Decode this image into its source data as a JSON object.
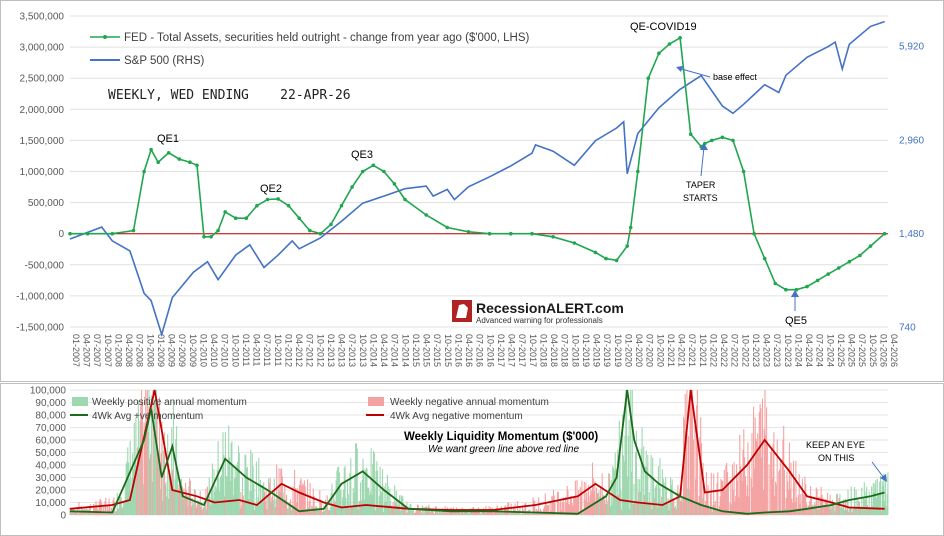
{
  "chart_data": [
    {
      "type": "line",
      "legend_placement": "top-left",
      "grid": true,
      "ylim_left": [
        -1500000,
        3500000
      ],
      "yticks_left": [
        "3,500,000",
        "3,000,000",
        "2,500,000",
        "2,000,000",
        "1,500,000",
        "1,000,000",
        "500,000",
        "0",
        "-500,000",
        "-1,000,000",
        "-1,500,000"
      ],
      "yticks_right": [
        "5,920",
        "2,960",
        "1,480",
        "740"
      ],
      "right_axis_scale": "log",
      "ylim_right": [
        740,
        7400
      ],
      "x_range": [
        "01-2007",
        "04-2026"
      ],
      "x_tick_labels": [
        "01-2007",
        "04-2007",
        "07-2007",
        "10-2007",
        "01-2008",
        "04-2008",
        "07-2008",
        "10-2008",
        "01-2009",
        "04-2009",
        "07-2009",
        "10-2009",
        "01-2010",
        "04-2010",
        "07-2010",
        "10-2010",
        "01-2011",
        "04-2011",
        "07-2011",
        "10-2011",
        "01-2012",
        "04-2012",
        "07-2012",
        "10-2012",
        "01-2013",
        "04-2013",
        "07-2013",
        "10-2013",
        "01-2014",
        "04-2014",
        "07-2014",
        "10-2014",
        "01-2015",
        "04-2015",
        "07-2015",
        "10-2015",
        "01-2016",
        "04-2016",
        "07-2016",
        "10-2016",
        "01-2017",
        "04-2017",
        "07-2017",
        "10-2017",
        "01-2018",
        "04-2018",
        "07-2018",
        "10-2018",
        "01-2019",
        "04-2019",
        "07-2019",
        "10-2019",
        "01-2020",
        "04-2020",
        "07-2020",
        "10-2020",
        "01-2021",
        "04-2021",
        "07-2021",
        "10-2021",
        "01-2022",
        "04-2022",
        "07-2022",
        "10-2022",
        "01-2023",
        "04-2023",
        "07-2023",
        "10-2023",
        "01-2024",
        "04-2024",
        "07-2024",
        "10-2024",
        "01-2025",
        "04-2025",
        "07-2025",
        "10-2025",
        "01-2026",
        "04-2026"
      ],
      "series": [
        {
          "name": "FED - Total Assets, securities held outright - change from year ago ($'000, LHS)",
          "color": "#21a650",
          "axis": "left",
          "x": [
            "2007-01",
            "2007-06",
            "2008-01",
            "2008-07",
            "2008-10",
            "2008-12",
            "2009-02",
            "2009-05",
            "2009-08",
            "2009-11",
            "2010-01",
            "2010-03",
            "2010-05",
            "2010-07",
            "2010-09",
            "2010-12",
            "2011-03",
            "2011-06",
            "2011-09",
            "2011-12",
            "2012-03",
            "2012-06",
            "2012-09",
            "2012-12",
            "2013-03",
            "2013-06",
            "2013-09",
            "2013-12",
            "2014-03",
            "2014-06",
            "2014-09",
            "2014-12",
            "2015-06",
            "2015-12",
            "2016-06",
            "2016-12",
            "2017-06",
            "2017-12",
            "2018-06",
            "2018-12",
            "2019-06",
            "2019-09",
            "2019-12",
            "2020-03",
            "2020-04",
            "2020-06",
            "2020-09",
            "2020-12",
            "2021-03",
            "2021-06",
            "2021-09",
            "2021-12",
            "2022-01",
            "2022-03",
            "2022-06",
            "2022-09",
            "2022-12",
            "2023-03",
            "2023-06",
            "2023-09",
            "2023-12",
            "2024-03",
            "2024-06",
            "2024-09",
            "2024-12",
            "2025-03",
            "2025-06",
            "2025-09",
            "2025-12",
            "2026-04"
          ],
          "values": [
            0,
            0,
            0,
            50000,
            1000000,
            1350000,
            1150000,
            1300000,
            1200000,
            1150000,
            1100000,
            -50000,
            -50000,
            50000,
            350000,
            250000,
            250000,
            450000,
            550000,
            560000,
            450000,
            250000,
            50000,
            0,
            150000,
            450000,
            750000,
            1000000,
            1100000,
            1000000,
            800000,
            550000,
            300000,
            100000,
            30000,
            0,
            0,
            0,
            -50000,
            -150000,
            -300000,
            -400000,
            -430000,
            -200000,
            100000,
            1000000,
            2500000,
            2900000,
            3050000,
            3150000,
            1600000,
            1400000,
            1450000,
            1500000,
            1550000,
            1500000,
            1000000,
            0,
            -400000,
            -800000,
            -900000,
            -900000,
            -850000,
            -750000,
            -650000,
            -550000,
            -450000,
            -350000,
            -200000,
            0
          ]
        },
        {
          "name": "S&P 500 (RHS)",
          "color": "#4472c4",
          "axis": "right",
          "x": [
            "2007-01",
            "2007-10",
            "2008-01",
            "2008-06",
            "2008-10",
            "2008-12",
            "2009-03",
            "2009-06",
            "2009-12",
            "2010-04",
            "2010-07",
            "2010-12",
            "2011-04",
            "2011-08",
            "2011-12",
            "2012-04",
            "2012-06",
            "2012-12",
            "2013-06",
            "2013-12",
            "2014-06",
            "2014-12",
            "2015-06",
            "2015-08",
            "2015-12",
            "2016-02",
            "2016-06",
            "2016-12",
            "2017-06",
            "2017-12",
            "2018-01",
            "2018-06",
            "2018-12",
            "2019-06",
            "2019-12",
            "2020-02",
            "2020-03",
            "2020-06",
            "2020-12",
            "2021-06",
            "2021-12",
            "2022-06",
            "2022-09",
            "2022-12",
            "2023-06",
            "2023-10",
            "2023-12",
            "2024-06",
            "2024-12",
            "2025-02",
            "2025-04",
            "2025-06",
            "2025-12",
            "2026-04"
          ],
          "values": [
            1420,
            1550,
            1400,
            1300,
            950,
            900,
            700,
            920,
            1110,
            1200,
            1050,
            1260,
            1360,
            1150,
            1260,
            1400,
            1320,
            1430,
            1620,
            1850,
            1950,
            2060,
            2100,
            1950,
            2050,
            1900,
            2090,
            2250,
            2440,
            2680,
            2850,
            2720,
            2450,
            2940,
            3230,
            3380,
            2300,
            3100,
            3750,
            4300,
            4760,
            3800,
            3600,
            3850,
            4450,
            4200,
            4770,
            5450,
            5900,
            6100,
            5000,
            6000,
            6850,
            7100
          ]
        }
      ],
      "annotations": [
        "QE1",
        "QE2",
        "QE3",
        "QE-COVID19",
        "base effect",
        "TAPER",
        "STARTS",
        "QE5"
      ],
      "subtitle": "WEEKLY, WED ENDING    22-APR-26",
      "watermark_brand": "RecessionALERT.com",
      "watermark_tagline": "Advanced warning for professionals"
    },
    {
      "type": "bar",
      "title": "Weekly Liquidity Momentum ($'000)",
      "subtitle": "We want green line above red line",
      "legend_placement": "top-left",
      "ylim": [
        0,
        100000
      ],
      "yticks": [
        "100,000",
        "90,000",
        "80,000",
        "70,000",
        "60,000",
        "50,000",
        "40,000",
        "30,000",
        "20,000",
        "10,000",
        "0"
      ],
      "x_range": [
        "2007-01",
        "2026-04"
      ],
      "series": [
        {
          "name": "Weekly positive annual momentum",
          "color": "#9ed8b0",
          "kind": "bar"
        },
        {
          "name": "Weekly negative annual momentum",
          "color": "#f4a3a3",
          "kind": "bar"
        },
        {
          "name": "4Wk Avg +ve momentum",
          "color": "#1a6b1a",
          "kind": "line",
          "x": [
            "2007-01",
            "2008-01",
            "2008-10",
            "2008-12",
            "2009-03",
            "2009-06",
            "2009-09",
            "2010-03",
            "2010-09",
            "2011-03",
            "2011-09",
            "2012-06",
            "2013-01",
            "2013-06",
            "2013-12",
            "2014-06",
            "2015-01",
            "2016-01",
            "2017-01",
            "2018-01",
            "2019-01",
            "2019-09",
            "2019-12",
            "2020-03",
            "2020-05",
            "2020-08",
            "2020-12",
            "2021-06",
            "2021-12",
            "2022-06",
            "2023-01",
            "2023-06",
            "2024-01",
            "2024-06",
            "2025-01",
            "2025-06",
            "2025-12",
            "2026-04"
          ],
          "values": [
            3000,
            2000,
            60000,
            85000,
            30000,
            55000,
            15000,
            8000,
            45000,
            30000,
            20000,
            3000,
            5000,
            25000,
            35000,
            20000,
            5000,
            3000,
            3000,
            2000,
            1000,
            15000,
            30000,
            100000,
            60000,
            35000,
            25000,
            15000,
            8000,
            3000,
            1000,
            2000,
            3000,
            5000,
            8000,
            12000,
            15000,
            18000
          ]
        },
        {
          "name": "4Wk Avg negative momentum",
          "color": "#c00000",
          "kind": "line",
          "x": [
            "2007-01",
            "2008-01",
            "2008-06",
            "2009-01",
            "2009-06",
            "2010-01",
            "2010-06",
            "2011-01",
            "2011-06",
            "2012-01",
            "2012-06",
            "2013-01",
            "2013-06",
            "2014-01",
            "2015-01",
            "2016-01",
            "2017-01",
            "2018-01",
            "2019-01",
            "2019-06",
            "2020-01",
            "2020-06",
            "2021-01",
            "2021-06",
            "2021-09",
            "2022-01",
            "2022-06",
            "2023-01",
            "2023-06",
            "2024-01",
            "2024-06",
            "2025-01",
            "2025-06",
            "2026-04"
          ],
          "values": [
            5000,
            8000,
            12000,
            100000,
            20000,
            15000,
            10000,
            12000,
            8000,
            25000,
            18000,
            10000,
            6000,
            8000,
            5000,
            4000,
            4000,
            8000,
            15000,
            25000,
            12000,
            10000,
            8000,
            15000,
            100000,
            18000,
            20000,
            40000,
            60000,
            35000,
            15000,
            10000,
            6000,
            5000
          ]
        }
      ],
      "annotations": [
        "KEEP AN EYE",
        "ON THIS"
      ]
    }
  ]
}
